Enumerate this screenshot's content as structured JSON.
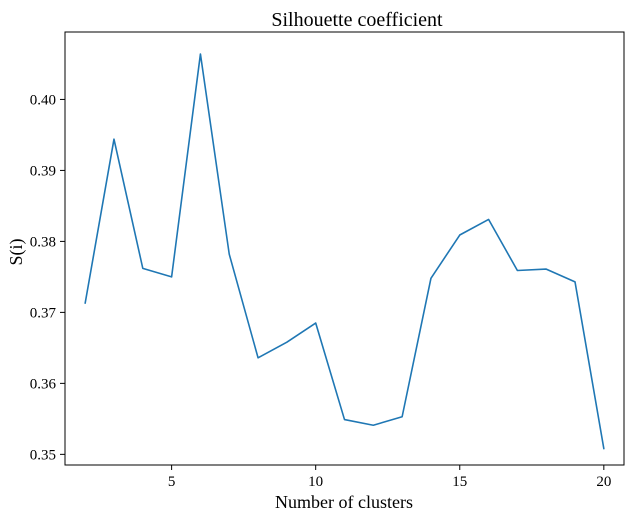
{
  "chart_data": {
    "type": "line",
    "title": "Silhouette coefficient",
    "xlabel": "Number of clusters",
    "ylabel": "S(i)",
    "xlim": [
      1.3,
      20.7
    ],
    "ylim": [
      0.3485,
      0.4095
    ],
    "xticks": [
      5,
      10,
      15,
      20
    ],
    "xtick_labels": [
      "5",
      "10",
      "15",
      "20"
    ],
    "yticks": [
      0.35,
      0.36,
      0.37,
      0.38,
      0.39,
      0.4
    ],
    "ytick_labels": [
      "0.35",
      "0.36",
      "0.37",
      "0.38",
      "0.39",
      "0.40"
    ],
    "grid": false,
    "legend": "none",
    "series": [
      {
        "color": "#1f77b4",
        "x": [
          2,
          3,
          4,
          5,
          6,
          7,
          8,
          9,
          10,
          11,
          12,
          13,
          14,
          15,
          16,
          17,
          18,
          19,
          20
        ],
        "y": [
          0.3713,
          0.3944,
          0.3762,
          0.375,
          0.4064,
          0.3782,
          0.3636,
          0.3658,
          0.3685,
          0.3549,
          0.3541,
          0.3553,
          0.3748,
          0.3809,
          0.3831,
          0.3759,
          0.3761,
          0.3743,
          0.3508
        ]
      }
    ]
  }
}
